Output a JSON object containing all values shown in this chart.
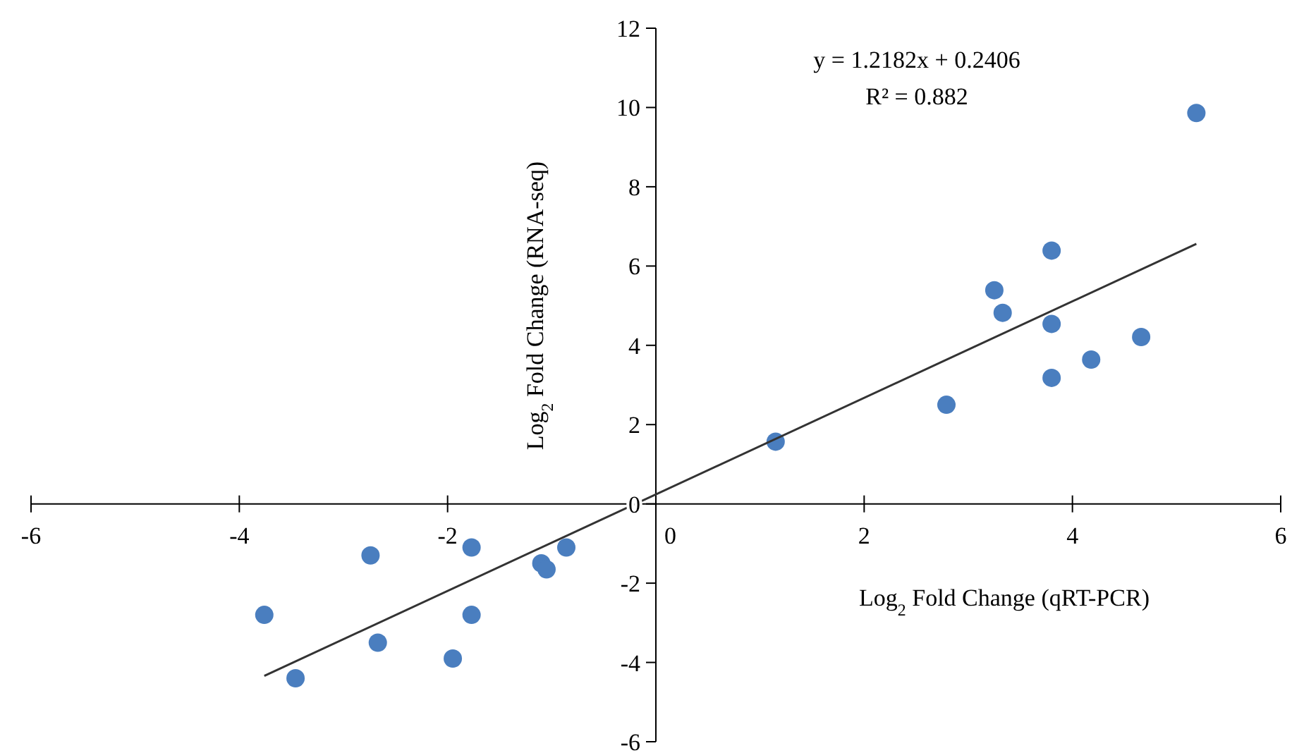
{
  "chart_data": {
    "type": "scatter",
    "xlabel": "Log$_{2}$ Fold Change (qRT-PCR)",
    "ylabel": "Log$_{2}$ Fold Change (RNA-seq)",
    "xlim": [
      -6,
      6
    ],
    "ylim": [
      -6,
      12
    ],
    "xticks": [
      -6,
      -4,
      -2,
      0,
      2,
      4,
      6
    ],
    "yticks": [
      -6,
      -4,
      -2,
      0,
      2,
      4,
      6,
      8,
      10,
      12
    ],
    "grid": false,
    "annotations": [
      "y = 1.2182x + 0.2406",
      "R² = 0.882"
    ],
    "series": [
      {
        "type": "scatter",
        "marker": "circle",
        "color": "#4a7ebf",
        "x": [
          5.19,
          3.8,
          3.25,
          3.33,
          3.8,
          4.66,
          4.18,
          3.8,
          2.79,
          1.15,
          -0.86,
          -1.77,
          -2.74,
          -1.1,
          -1.05,
          -1.77,
          -3.76,
          -2.67,
          -1.95,
          -3.46
        ],
        "values": [
          9.86,
          6.39,
          5.39,
          4.82,
          4.54,
          4.21,
          3.64,
          3.18,
          2.5,
          1.57,
          -1.1,
          -1.1,
          -1.3,
          -1.5,
          -1.65,
          -2.8,
          -2.8,
          -3.5,
          -3.9,
          -4.4
        ]
      },
      {
        "type": "line",
        "color": "#333333",
        "x": [
          -3.76,
          5.19
        ],
        "values": [
          -4.34,
          6.56
        ]
      }
    ]
  }
}
